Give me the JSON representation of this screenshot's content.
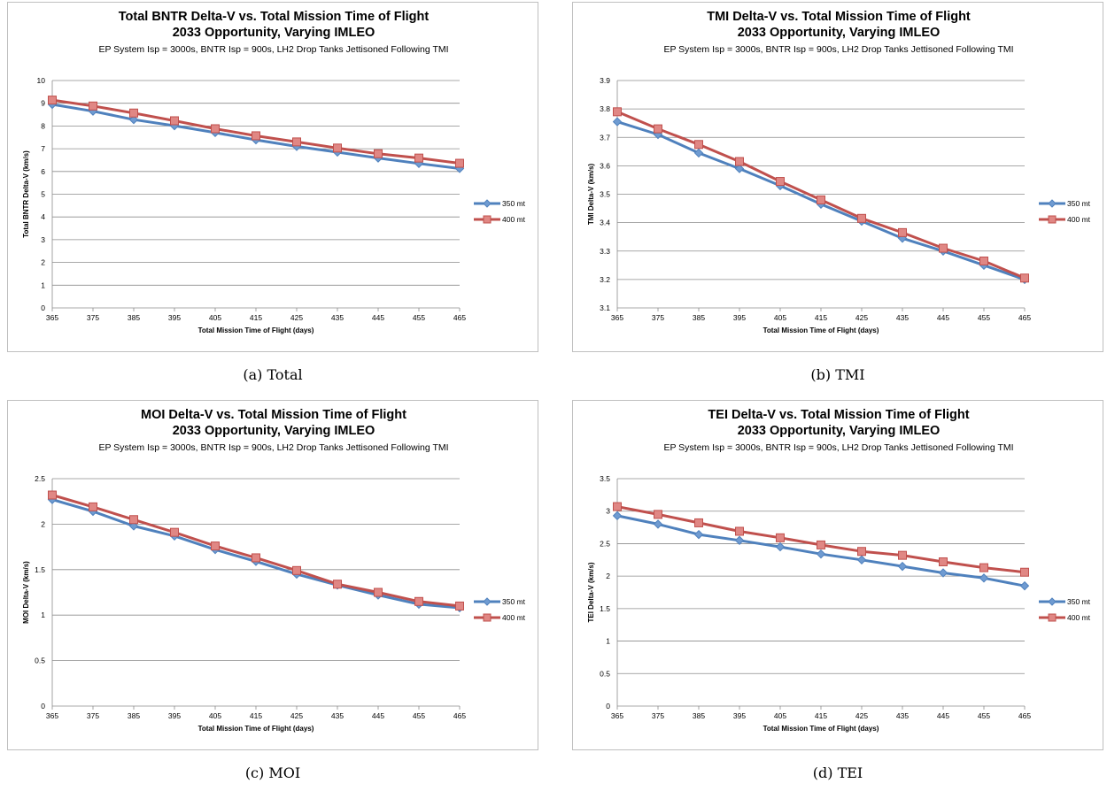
{
  "chart_data": [
    {
      "type": "line",
      "caption": "(a)  Total",
      "title": "Total BNTR Delta-V vs. Total Mission Time of Flight",
      "title2": "2033 Opportunity, Varying IMLEO",
      "subtitle": "EP System Isp = 3000s, BNTR Isp = 900s, LH2 Drop Tanks Jettisoned Following TMI",
      "xlabel": "Total Mission Time of Flight (days)",
      "ylabel": "Total BNTR Delta-V (km/s)",
      "x": [
        365,
        375,
        385,
        395,
        405,
        415,
        425,
        435,
        445,
        455,
        465
      ],
      "ylim": [
        0,
        10
      ],
      "yticks": [
        "0",
        "1",
        "2",
        "3",
        "4",
        "5",
        "6",
        "7",
        "8",
        "9",
        "10"
      ],
      "grid": true,
      "legend": "right",
      "series": [
        {
          "name": "350 mt",
          "color": "#4f81bd",
          "marker": "diamond",
          "values": [
            8.95,
            8.65,
            8.28,
            8.01,
            7.71,
            7.39,
            7.1,
            6.85,
            6.59,
            6.35,
            6.13
          ]
        },
        {
          "name": "400 mt",
          "color": "#c0504d",
          "marker": "square",
          "values": [
            9.14,
            8.88,
            8.57,
            8.23,
            7.88,
            7.57,
            7.3,
            7.03,
            6.78,
            6.59,
            6.36
          ]
        }
      ]
    },
    {
      "type": "line",
      "caption": "(b)  TMI",
      "title": "TMI Delta-V vs. Total Mission Time of Flight",
      "title2": "2033 Opportunity, Varying IMLEO",
      "subtitle": "EP System Isp = 3000s, BNTR Isp = 900s, LH2 Drop Tanks Jettisoned Following TMI",
      "xlabel": "Total Mission Time of Flight (days)",
      "ylabel": "TMI Delta-V (km/s)",
      "x": [
        365,
        375,
        385,
        395,
        405,
        415,
        425,
        435,
        445,
        455,
        465
      ],
      "ylim": [
        3.1,
        3.9
      ],
      "yticks": [
        "3.1",
        "3.2",
        "3.3",
        "3.4",
        "3.5",
        "3.6",
        "3.7",
        "3.8",
        "3.9"
      ],
      "grid": true,
      "legend": "right",
      "series": [
        {
          "name": "350 mt",
          "color": "#4f81bd",
          "marker": "diamond",
          "values": [
            3.755,
            3.71,
            3.645,
            3.59,
            3.53,
            3.465,
            3.405,
            3.345,
            3.3,
            3.25,
            3.2
          ]
        },
        {
          "name": "400 mt",
          "color": "#c0504d",
          "marker": "square",
          "values": [
            3.79,
            3.73,
            3.675,
            3.615,
            3.545,
            3.48,
            3.415,
            3.365,
            3.31,
            3.265,
            3.205
          ]
        }
      ]
    },
    {
      "type": "line",
      "caption": "(c)  MOI",
      "title": "MOI Delta-V vs. Total Mission Time of Flight",
      "title2": "2033 Opportunity, Varying IMLEO",
      "subtitle": "EP System Isp = 3000s, BNTR Isp = 900s, LH2 Drop Tanks Jettisoned Following TMI",
      "xlabel": "Total Mission Time of Flight (days)",
      "ylabel": "MOI Delta-V (km/s)",
      "x": [
        365,
        375,
        385,
        395,
        405,
        415,
        425,
        435,
        445,
        455,
        465
      ],
      "ylim": [
        0,
        2.5
      ],
      "yticks": [
        "0",
        "0.5",
        "1",
        "1.5",
        "2",
        "2.5"
      ],
      "grid": true,
      "legend": "right",
      "series": [
        {
          "name": "350 mt",
          "color": "#4f81bd",
          "marker": "diamond",
          "values": [
            2.27,
            2.14,
            1.98,
            1.87,
            1.72,
            1.59,
            1.45,
            1.33,
            1.22,
            1.12,
            1.08
          ]
        },
        {
          "name": "400 mt",
          "color": "#c0504d",
          "marker": "square",
          "values": [
            2.32,
            2.19,
            2.05,
            1.91,
            1.76,
            1.63,
            1.49,
            1.34,
            1.25,
            1.15,
            1.1
          ]
        }
      ]
    },
    {
      "type": "line",
      "caption": "(d)  TEI",
      "title": "TEI Delta-V vs. Total Mission Time of Flight",
      "title2": "2033 Opportunity, Varying IMLEO",
      "subtitle": "EP System Isp = 3000s, BNTR Isp = 900s, LH2 Drop Tanks Jettisoned Following TMI",
      "xlabel": "Total Mission Time of Flight (days)",
      "ylabel": "TEI Delta-V (km/s)",
      "x": [
        365,
        375,
        385,
        395,
        405,
        415,
        425,
        435,
        445,
        455,
        465
      ],
      "ylim": [
        0,
        3.5
      ],
      "yticks": [
        "0",
        "0.5",
        "1",
        "1.5",
        "2",
        "2.5",
        "3",
        "3.5"
      ],
      "grid": true,
      "legend": "right",
      "series": [
        {
          "name": "350 mt",
          "color": "#4f81bd",
          "marker": "diamond",
          "values": [
            2.93,
            2.8,
            2.64,
            2.55,
            2.45,
            2.34,
            2.25,
            2.15,
            2.05,
            1.97,
            1.85
          ]
        },
        {
          "name": "400 mt",
          "color": "#c0504d",
          "marker": "square",
          "values": [
            3.07,
            2.95,
            2.82,
            2.69,
            2.59,
            2.48,
            2.38,
            2.32,
            2.22,
            2.13,
            2.06
          ]
        }
      ]
    }
  ]
}
